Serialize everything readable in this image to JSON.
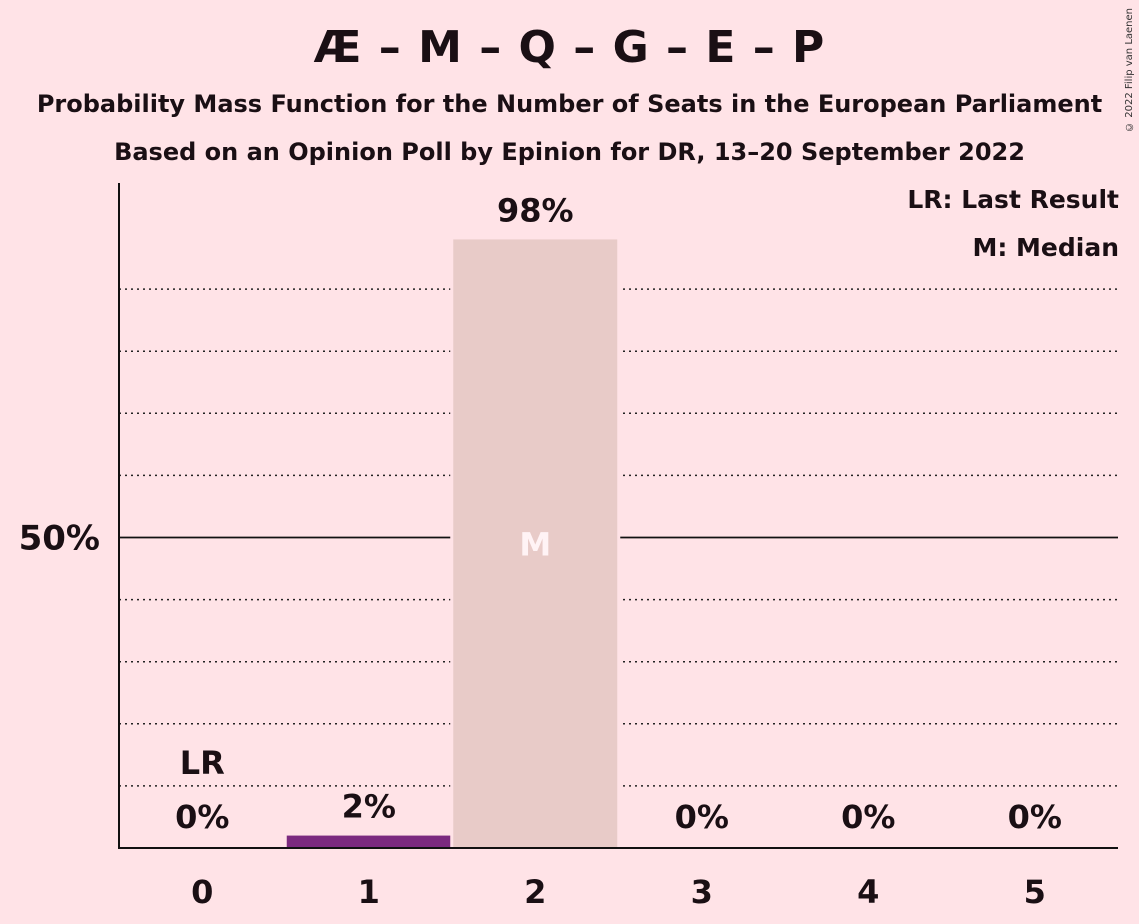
{
  "title": "Æ – M – Q – G – E – P",
  "subtitle1": "Probability Mass Function for the Number of Seats in the European Parliament",
  "subtitle2": "Based on an Opinion Poll by Epinion for DR, 13–20 September 2022",
  "copyright": "© 2022 Filip van Laenen",
  "legend": {
    "last_result": "LR: Last Result",
    "median": "M: Median"
  },
  "colors": {
    "background": "#FFE3E7",
    "bar_main": "#E8CBC8",
    "bar_low": "#7B2A7F",
    "median_text": "#FFF3F5"
  },
  "chart_data": {
    "type": "bar",
    "categories": [
      "0",
      "1",
      "2",
      "3",
      "4",
      "5"
    ],
    "values": [
      0,
      2,
      98,
      0,
      0,
      0
    ],
    "value_labels": [
      "0%",
      "2%",
      "98%",
      "0%",
      "0%",
      "0%"
    ],
    "ylim": [
      0,
      100
    ],
    "y_tick_label": "50%",
    "y_tick_value": 50,
    "last_result_category": "0",
    "last_result_label": "LR",
    "median_category": "2",
    "median_label": "M",
    "gridlines": [
      10,
      20,
      30,
      40,
      60,
      70,
      80,
      90
    ]
  }
}
